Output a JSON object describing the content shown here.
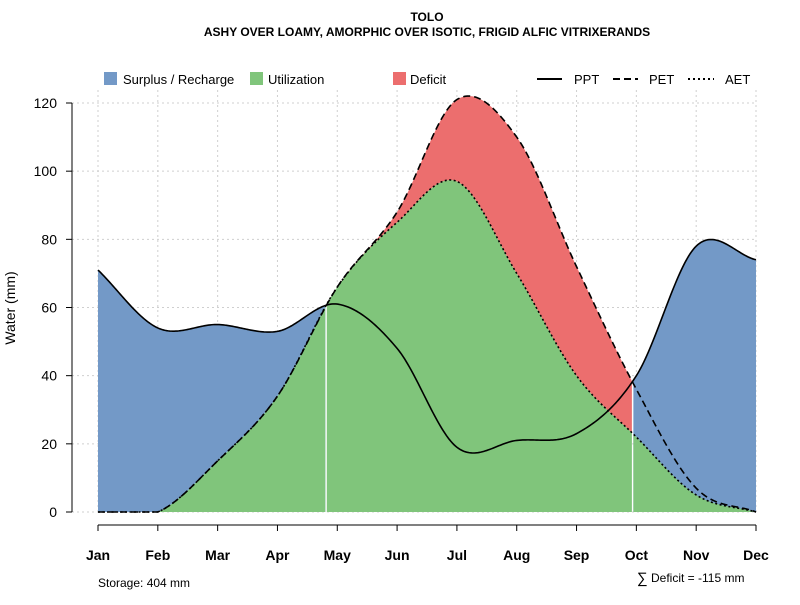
{
  "chart_data": {
    "type": "area",
    "title": "TOLO",
    "subtitle": "ASHY OVER LOAMY, AMORPHIC OVER ISOTIC, FRIGID ALFIC VITRIXERANDS",
    "xlabel": "",
    "ylabel": "Water (mm)",
    "ylim": [
      0,
      120
    ],
    "yticks": [
      "0",
      "20",
      "40",
      "60",
      "80",
      "100",
      "120"
    ],
    "categories": [
      "Jan",
      "Feb",
      "Mar",
      "Apr",
      "May",
      "Jun",
      "Jul",
      "Aug",
      "Sep",
      "Oct",
      "Nov",
      "Dec"
    ],
    "grid": true,
    "series": [
      {
        "name": "PPT",
        "style": "solid",
        "values": [
          71,
          54,
          55,
          53,
          61,
          48,
          19,
          21,
          23,
          40,
          78,
          74
        ]
      },
      {
        "name": "PET",
        "style": "dashed",
        "values": [
          0,
          0,
          15,
          34,
          66,
          88,
          121,
          110,
          72,
          36,
          7,
          0
        ]
      },
      {
        "name": "AET",
        "style": "dotted",
        "values": [
          0,
          0,
          15,
          34,
          66,
          85,
          97,
          70,
          40,
          22,
          5,
          0
        ]
      }
    ],
    "legend": {
      "position": "top",
      "areas": [
        {
          "label": "Surplus / Recharge",
          "color": "#7399c7"
        },
        {
          "label": "Utilization",
          "color": "#80c57b"
        },
        {
          "label": "Deficit",
          "color": "#ec6e6e"
        }
      ],
      "lines": [
        {
          "label": "PPT",
          "style": "solid"
        },
        {
          "label": "PET",
          "style": "dashed"
        },
        {
          "label": "AET",
          "style": "dotted"
        }
      ]
    },
    "annotations": {
      "storage": "Storage: 404 mm",
      "deficit_symbol": "∑",
      "deficit": "Deficit = -115 mm"
    }
  }
}
